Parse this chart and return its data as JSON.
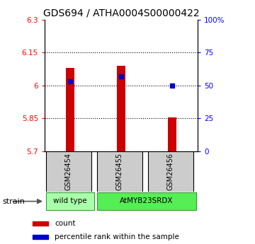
{
  "title": "GDS694 / ATHA0004S00000422",
  "samples": [
    "GSM26454",
    "GSM26455",
    "GSM26456"
  ],
  "bar_bottoms": [
    5.7,
    5.7,
    5.7
  ],
  "bar_tops": [
    6.08,
    6.09,
    5.855
  ],
  "percentile_values": [
    6.02,
    6.04,
    6.0
  ],
  "ylim_left": [
    5.7,
    6.3
  ],
  "ylim_right": [
    0,
    100
  ],
  "yticks_left": [
    5.7,
    5.85,
    6.0,
    6.15,
    6.3
  ],
  "yticks_right": [
    0,
    25,
    50,
    75,
    100
  ],
  "ytick_labels_left": [
    "5.7",
    "5.85",
    "6",
    "6.15",
    "6.3"
  ],
  "ytick_labels_right": [
    "0",
    "25",
    "50",
    "75",
    "100%"
  ],
  "hline_values": [
    5.85,
    6.0,
    6.15
  ],
  "bar_color": "#cc0000",
  "blue_color": "#0000cc",
  "bar_width": 0.18,
  "groups": [
    {
      "label": "wild type",
      "samples": [
        0
      ],
      "color": "#aaffaa"
    },
    {
      "label": "AtMYB23SRDX",
      "samples": [
        1,
        2
      ],
      "color": "#55ee55"
    }
  ],
  "strain_label": "strain",
  "sample_box_color": "#cccccc",
  "title_fontsize": 10,
  "tick_fontsize": 7.5,
  "legend_fontsize": 7.5
}
